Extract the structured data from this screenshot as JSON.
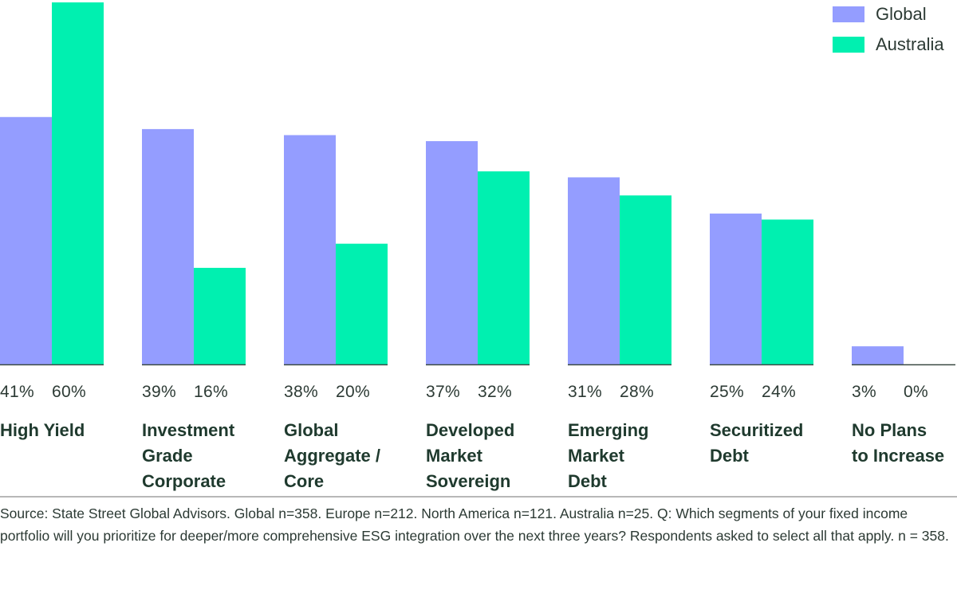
{
  "chart_data": {
    "type": "bar",
    "title": "",
    "xlabel": "",
    "ylabel": "",
    "ylim": [
      0,
      60
    ],
    "grid": false,
    "legend": "top-right",
    "categories": [
      "High Yield",
      "Investment\nGrade\nCorporate",
      "Global\nAggregate /\nCore",
      "Developed\nMarket\nSovereign",
      "Emerging\nMarket\nDebt",
      "Securitized\nDebt",
      "No Plans\nto Increase"
    ],
    "series": [
      {
        "name": "Global",
        "color": "#949dff",
        "values": [
          41,
          39,
          38,
          37,
          31,
          25,
          3
        ]
      },
      {
        "name": "Australia",
        "color": "#00f0b0",
        "values": [
          60,
          16,
          20,
          32,
          28,
          24,
          0
        ]
      }
    ],
    "value_labels": [
      [
        "41%",
        "60%"
      ],
      [
        "39%",
        "16%"
      ],
      [
        "38%",
        "20%"
      ],
      [
        "37%",
        "32%"
      ],
      [
        "31%",
        "28%"
      ],
      [
        "25%",
        "24%"
      ],
      [
        "3%",
        "0%"
      ]
    ]
  },
  "legend": {
    "items": [
      {
        "label": "Global",
        "color": "#949dff"
      },
      {
        "label": "Australia",
        "color": "#00f0b0"
      }
    ]
  },
  "footer": {
    "source": "Source: State Street Global Advisors. Global n=358. Europe n=212. North America n=121. Australia n=25. Q: Which segments of your fixed income portfolio will you prioritize for deeper/more comprehensive ESG integration over the next three years? Respondents asked to select all that apply. n = 358."
  }
}
